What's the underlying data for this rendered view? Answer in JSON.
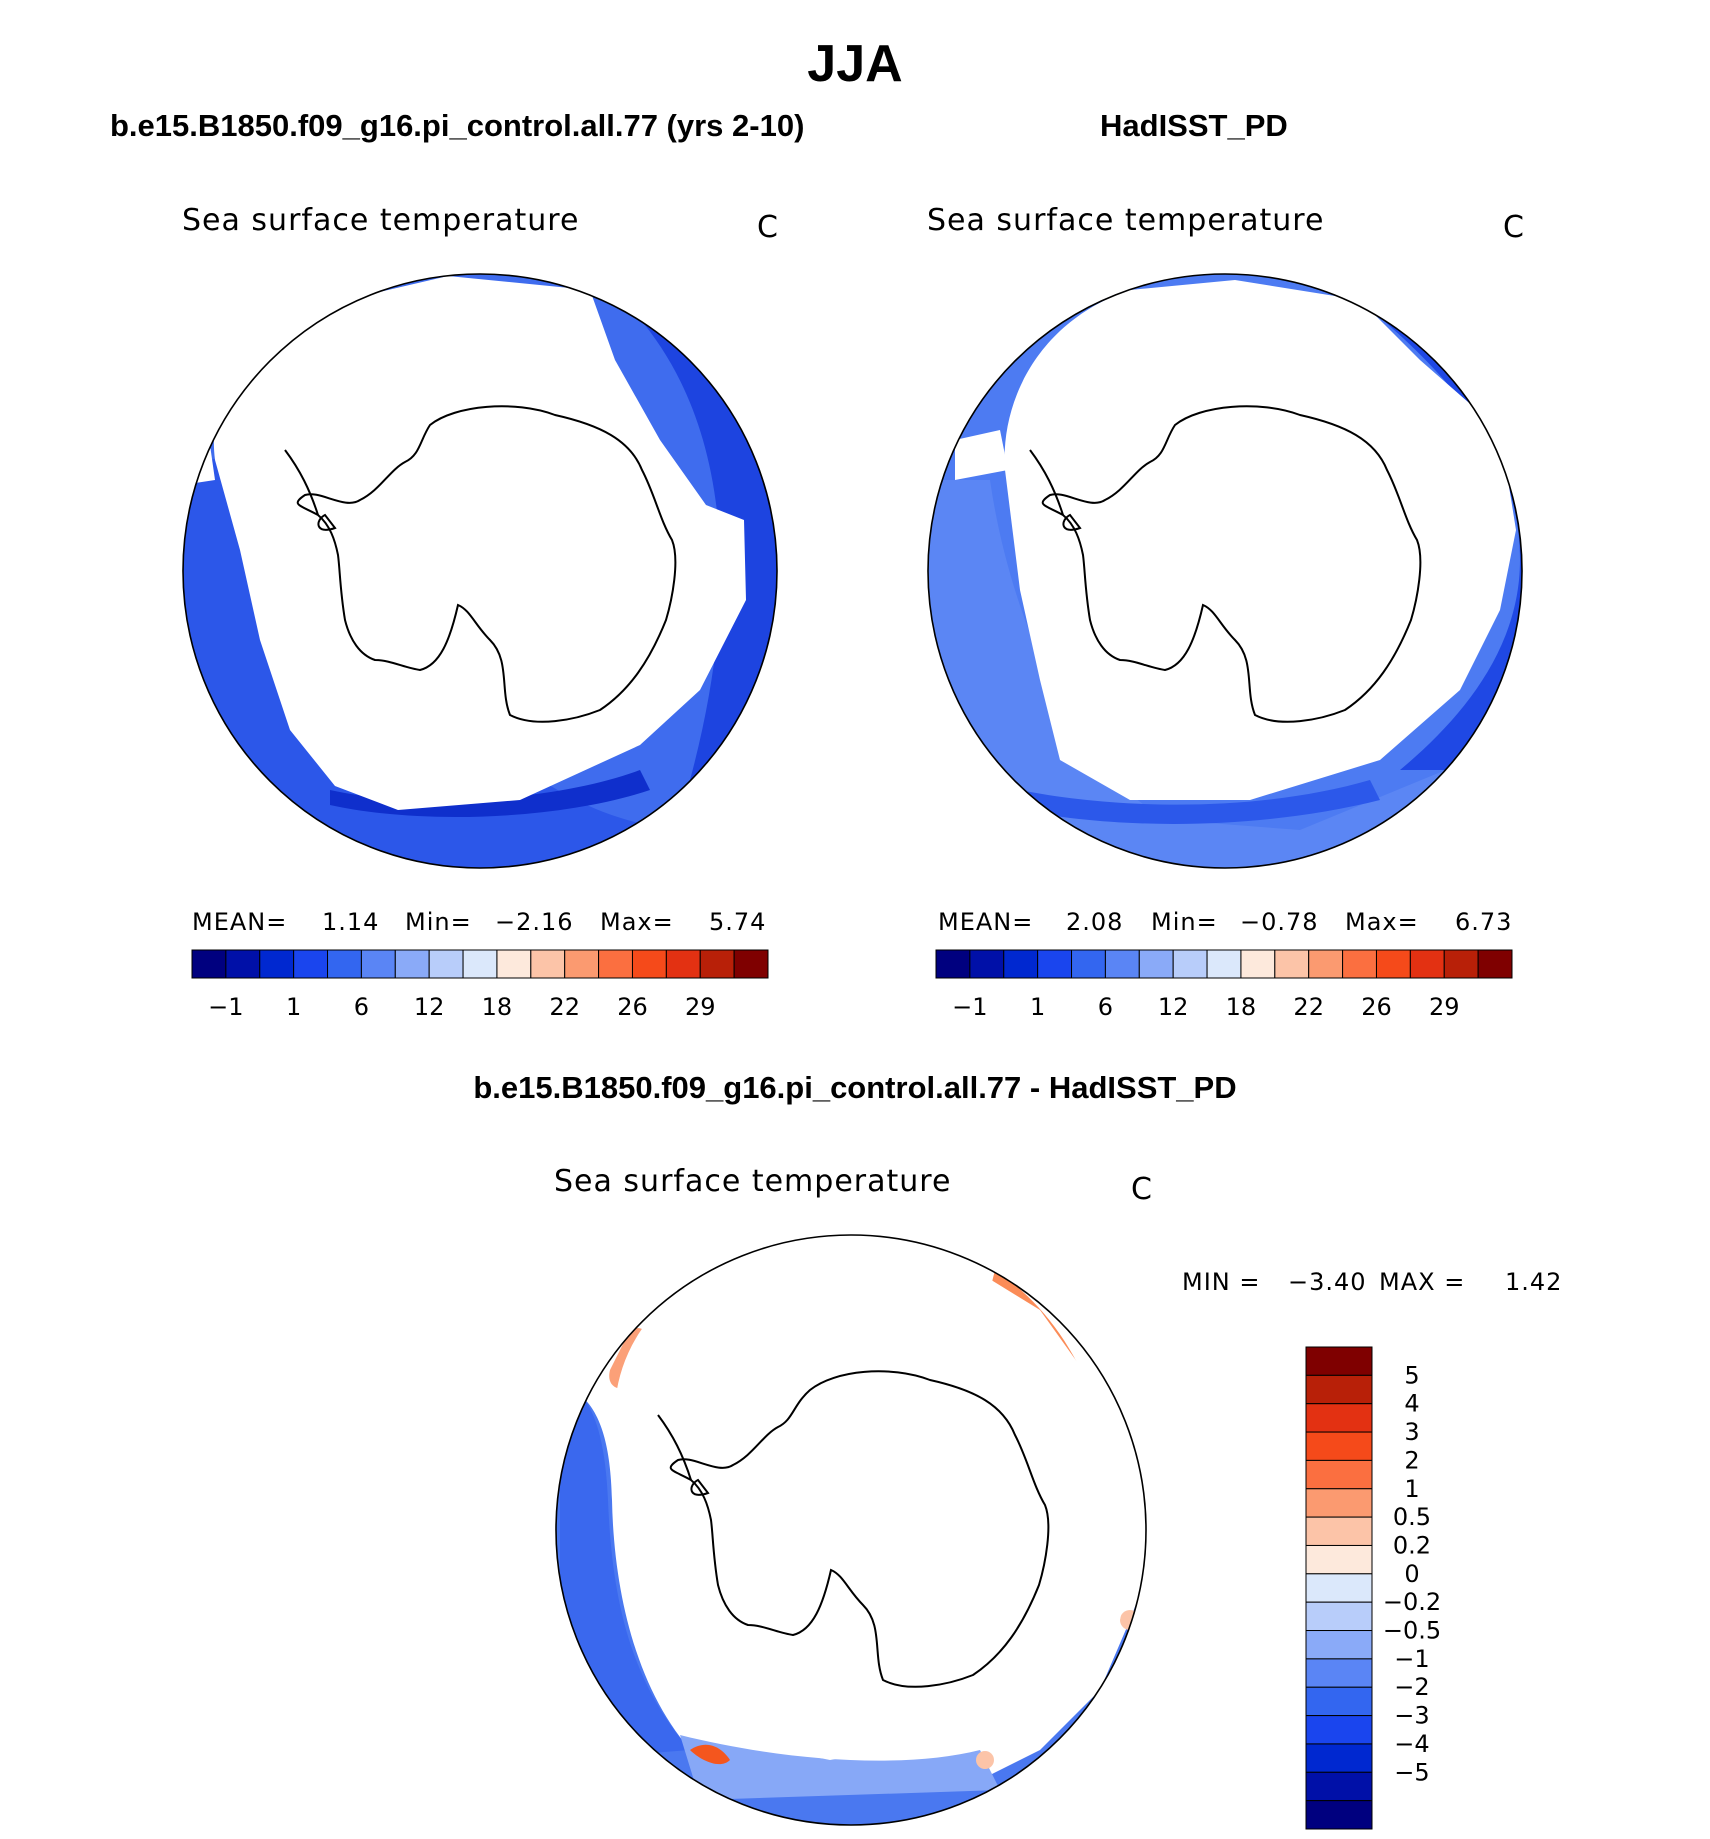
{
  "title": "JJA",
  "panels": [
    {
      "id": "model",
      "title": "b.e15.B1850.f09_g16.pi_control.all.77 (yrs 2-10)",
      "subtitle": "Sea surface temperature",
      "units": "C",
      "stats": {
        "mean_label": "MEAN=",
        "mean": "1.14",
        "min_label": "Min=",
        "min": "−2.16",
        "max_label": "Max=",
        "max": "5.74"
      }
    },
    {
      "id": "obs",
      "title": "HadISST_PD",
      "subtitle": "Sea surface temperature",
      "units": "C",
      "stats": {
        "mean_label": "MEAN=",
        "mean": "2.08",
        "min_label": "Min=",
        "min": "−0.78",
        "max_label": "Max=",
        "max": "6.73"
      }
    },
    {
      "id": "diff",
      "title": "b.e15.B1850.f09_g16.pi_control.all.77 - HadISST_PD",
      "subtitle": "Sea surface temperature",
      "units": "C",
      "stats": {
        "min_label": "MIN =",
        "min": "−3.40",
        "max_label": "MAX =",
        "max": "1.42"
      }
    }
  ],
  "sst_colorbar": {
    "colors": [
      "#00007f",
      "#0010a8",
      "#0028d0",
      "#1a45ee",
      "#3366f0",
      "#5a85f5",
      "#8aaaf8",
      "#b8cdfa",
      "#dbe8fb",
      "#fde9dc",
      "#fcc4a8",
      "#fb9a70",
      "#fb6f40",
      "#f54a1a",
      "#e33112",
      "#b82008",
      "#7f0000"
    ],
    "tick_labels": [
      "−1",
      "1",
      "6",
      "12",
      "18",
      "22",
      "26",
      "29"
    ]
  },
  "diff_colorbar": {
    "colors": [
      "#7f0000",
      "#b82008",
      "#e33112",
      "#f54a1a",
      "#fb6f40",
      "#fb9a70",
      "#fcc4a8",
      "#fde9dc",
      "#dbe8fb",
      "#b8cdfa",
      "#8aaaf8",
      "#5a85f5",
      "#3366f0",
      "#1a45ee",
      "#0028d0",
      "#0010a8",
      "#00007f"
    ],
    "tick_labels": [
      "5",
      "4",
      "3",
      "2",
      "1",
      "0.5",
      "0.2",
      "0",
      "−0.2",
      "−0.5",
      "−1",
      "−2",
      "−3",
      "−4",
      "−5"
    ]
  }
}
